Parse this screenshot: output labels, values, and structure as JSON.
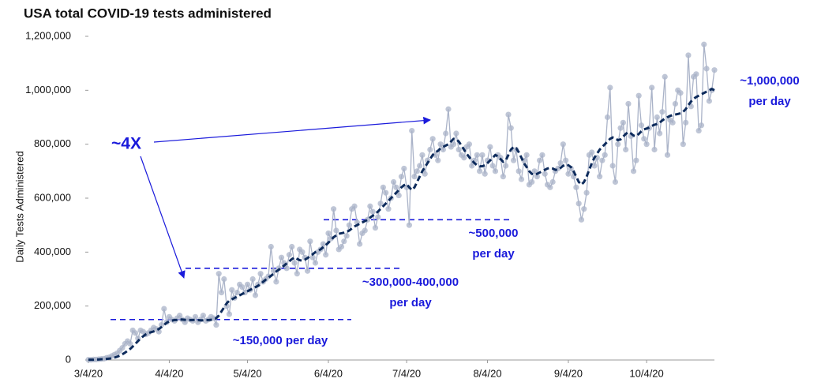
{
  "chart_data": {
    "type": "line",
    "title": "USA total COVID-19 tests administered",
    "y_label": "Daily Tests Administered",
    "categories": [
      "3/4/20",
      null,
      null,
      null,
      null,
      null,
      null,
      null,
      null,
      null,
      null,
      null,
      null,
      null,
      null,
      null,
      null,
      null,
      null,
      null,
      null,
      null,
      null,
      null,
      null,
      null,
      null,
      null,
      null,
      null,
      null,
      "4/4/20",
      null,
      null,
      null,
      null,
      null,
      null,
      null,
      null,
      null,
      null,
      null,
      null,
      null,
      null,
      null,
      null,
      null,
      null,
      null,
      null,
      null,
      null,
      null,
      null,
      null,
      null,
      null,
      null,
      null,
      "5/4/20",
      null,
      null,
      null,
      null,
      null,
      null,
      null,
      null,
      null,
      null,
      null,
      null,
      null,
      null,
      null,
      null,
      null,
      null,
      null,
      null,
      null,
      null,
      null,
      null,
      null,
      null,
      null,
      null,
      null,
      null,
      "6/4/20",
      null,
      null,
      null,
      null,
      null,
      null,
      null,
      null,
      null,
      null,
      null,
      null,
      null,
      null,
      null,
      null,
      null,
      null,
      null,
      null,
      null,
      null,
      null,
      null,
      null,
      null,
      null,
      null,
      null,
      "7/4/20",
      null,
      null,
      null,
      null,
      null,
      null,
      null,
      null,
      null,
      null,
      null,
      null,
      null,
      null,
      null,
      null,
      null,
      null,
      null,
      null,
      null,
      null,
      null,
      null,
      null,
      null,
      null,
      null,
      null,
      null,
      "8/4/20",
      null,
      null,
      null,
      null,
      null,
      null,
      null,
      null,
      null,
      null,
      null,
      null,
      null,
      null,
      null,
      null,
      null,
      null,
      null,
      null,
      null,
      null,
      null,
      null,
      null,
      null,
      null,
      null,
      null,
      null,
      "9/4/20",
      null,
      null,
      null,
      null,
      null,
      null,
      null,
      null,
      null,
      null,
      null,
      null,
      null,
      null,
      null,
      null,
      null,
      null,
      null,
      null,
      null,
      null,
      null,
      null,
      null,
      null,
      null,
      null,
      null,
      "10/4/20",
      null,
      null,
      null,
      null,
      null,
      null,
      null,
      null,
      null,
      null,
      null,
      null,
      null,
      null,
      null,
      null,
      null,
      null,
      null,
      null,
      null,
      null,
      null,
      null,
      null,
      null
    ],
    "series": [
      {
        "color": "#aab3c8",
        "markers": true,
        "line_style": "solid",
        "values": [
          1000,
          1000,
          2000,
          2000,
          3000,
          4000,
          5000,
          8000,
          10000,
          15000,
          20000,
          25000,
          35000,
          45000,
          60000,
          70000,
          60000,
          110000,
          100000,
          80000,
          110000,
          105000,
          95000,
          100000,
          110000,
          120000,
          115000,
          105000,
          130000,
          190000,
          140000,
          160000,
          150000,
          145000,
          155000,
          165000,
          150000,
          140000,
          155000,
          150000,
          145000,
          160000,
          140000,
          150000,
          165000,
          145000,
          150000,
          160000,
          155000,
          130000,
          320000,
          250000,
          300000,
          200000,
          170000,
          260000,
          230000,
          250000,
          280000,
          270000,
          250000,
          280000,
          260000,
          300000,
          240000,
          280000,
          320000,
          290000,
          300000,
          310000,
          420000,
          330000,
          290000,
          340000,
          380000,
          360000,
          340000,
          390000,
          420000,
          360000,
          320000,
          410000,
          400000,
          380000,
          330000,
          440000,
          380000,
          360000,
          400000,
          410000,
          430000,
          390000,
          470000,
          450000,
          560000,
          480000,
          410000,
          420000,
          440000,
          460000,
          500000,
          560000,
          570000,
          510000,
          430000,
          470000,
          480000,
          520000,
          570000,
          550000,
          490000,
          530000,
          580000,
          640000,
          620000,
          560000,
          600000,
          660000,
          640000,
          610000,
          680000,
          710000,
          640000,
          500000,
          850000,
          680000,
          700000,
          720000,
          760000,
          690000,
          740000,
          780000,
          820000,
          760000,
          740000,
          800000,
          780000,
          840000,
          930000,
          790000,
          800000,
          840000,
          780000,
          760000,
          750000,
          790000,
          800000,
          720000,
          740000,
          760000,
          700000,
          760000,
          690000,
          740000,
          790000,
          720000,
          700000,
          760000,
          750000,
          680000,
          720000,
          910000,
          860000,
          740000,
          780000,
          700000,
          670000,
          740000,
          760000,
          650000,
          660000,
          700000,
          680000,
          740000,
          760000,
          690000,
          650000,
          640000,
          660000,
          700000,
          710000,
          730000,
          800000,
          740000,
          690000,
          710000,
          680000,
          640000,
          580000,
          520000,
          560000,
          620000,
          760000,
          770000,
          720000,
          750000,
          680000,
          740000,
          760000,
          900000,
          1010000,
          720000,
          660000,
          800000,
          860000,
          880000,
          780000,
          950000,
          830000,
          700000,
          740000,
          980000,
          870000,
          820000,
          800000,
          860000,
          1010000,
          780000,
          900000,
          840000,
          920000,
          1050000,
          760000,
          890000,
          880000,
          950000,
          1000000,
          990000,
          800000,
          880000,
          1130000,
          940000,
          1050000,
          1060000,
          850000,
          870000,
          1170000,
          1080000,
          960000,
          1000000,
          1075000
        ]
      },
      {
        "color": "#0d2b5c",
        "markers": false,
        "line_style": "dashed",
        "values": [
          1000,
          1000,
          1000,
          2000,
          2000,
          3000,
          3000,
          4000,
          5000,
          7000,
          9000,
          12000,
          16000,
          21000,
          27000,
          34000,
          41000,
          50000,
          60000,
          70000,
          80000,
          88000,
          95000,
          100000,
          103000,
          106000,
          110000,
          115000,
          122000,
          130000,
          138000,
          143000,
          146000,
          148000,
          148000,
          150000,
          150000,
          149000,
          148000,
          148000,
          148000,
          149000,
          148000,
          147000,
          147000,
          148000,
          148000,
          149000,
          150000,
          155000,
          165000,
          180000,
          195000,
          210000,
          220000,
          225000,
          230000,
          235000,
          240000,
          245000,
          250000,
          255000,
          260000,
          265000,
          270000,
          275000,
          282000,
          290000,
          298000,
          305000,
          312000,
          320000,
          328000,
          335000,
          342000,
          350000,
          358000,
          366000,
          374000,
          380000,
          375000,
          370000,
          368000,
          372000,
          378000,
          385000,
          392000,
          400000,
          405000,
          410000,
          418000,
          426000,
          435000,
          445000,
          455000,
          462000,
          468000,
          470000,
          472000,
          475000,
          480000,
          488000,
          495000,
          500000,
          505000,
          510000,
          515000,
          520000,
          528000,
          535000,
          542000,
          550000,
          560000,
          570000,
          580000,
          590000,
          600000,
          610000,
          620000,
          630000,
          640000,
          648000,
          652000,
          640000,
          630000,
          640000,
          660000,
          680000,
          700000,
          715000,
          730000,
          745000,
          760000,
          770000,
          775000,
          785000,
          790000,
          795000,
          800000,
          810000,
          820000,
          818000,
          810000,
          795000,
          780000,
          765000,
          752000,
          740000,
          730000,
          722000,
          718000,
          718000,
          722000,
          730000,
          740000,
          750000,
          760000,
          755000,
          745000,
          735000,
          740000,
          760000,
          780000,
          790000,
          785000,
          770000,
          750000,
          730000,
          715000,
          700000,
          690000,
          688000,
          690000,
          695000,
          700000,
          705000,
          710000,
          712000,
          710000,
          705000,
          705000,
          712000,
          720000,
          725000,
          722000,
          715000,
          700000,
          680000,
          660000,
          650000,
          660000,
          680000,
          705000,
          730000,
          750000,
          765000,
          780000,
          790000,
          800000,
          810000,
          820000,
          825000,
          822000,
          815000,
          818000,
          828000,
          838000,
          845000,
          840000,
          832000,
          830000,
          838000,
          848000,
          855000,
          858000,
          862000,
          868000,
          872000,
          875000,
          880000,
          888000,
          895000,
          900000,
          905000,
          908000,
          910000,
          912000,
          915000,
          920000,
          930000,
          945000,
          958000,
          968000,
          975000,
          980000,
          985000,
          990000,
          995000,
          1000000,
          1005000,
          1000000
        ]
      }
    ],
    "ylim": [
      0,
      1200000
    ],
    "yticks": [
      0,
      {
        "value": 200000,
        "label": "200,000"
      },
      {
        "value": 400000,
        "label": "400,000"
      },
      {
        "value": 600000,
        "label": "600,000"
      },
      {
        "value": 800000,
        "label": "800,000"
      },
      {
        "value": 1000000,
        "label": "1,000,000"
      },
      {
        "value": 1200000,
        "label": "1,200,000"
      }
    ],
    "grid": false,
    "reference_lines": [
      150000,
      340000,
      520000
    ],
    "annotations": [
      {
        "text": [
          "~4X"
        ]
      },
      {
        "text": [
          "~150,000  per day"
        ]
      },
      {
        "text": [
          "~300,000-400,000",
          "per day"
        ]
      },
      {
        "text": [
          "~500,000",
          "per day"
        ]
      },
      {
        "text": [
          "~1,000,000",
          "per day"
        ]
      }
    ]
  }
}
